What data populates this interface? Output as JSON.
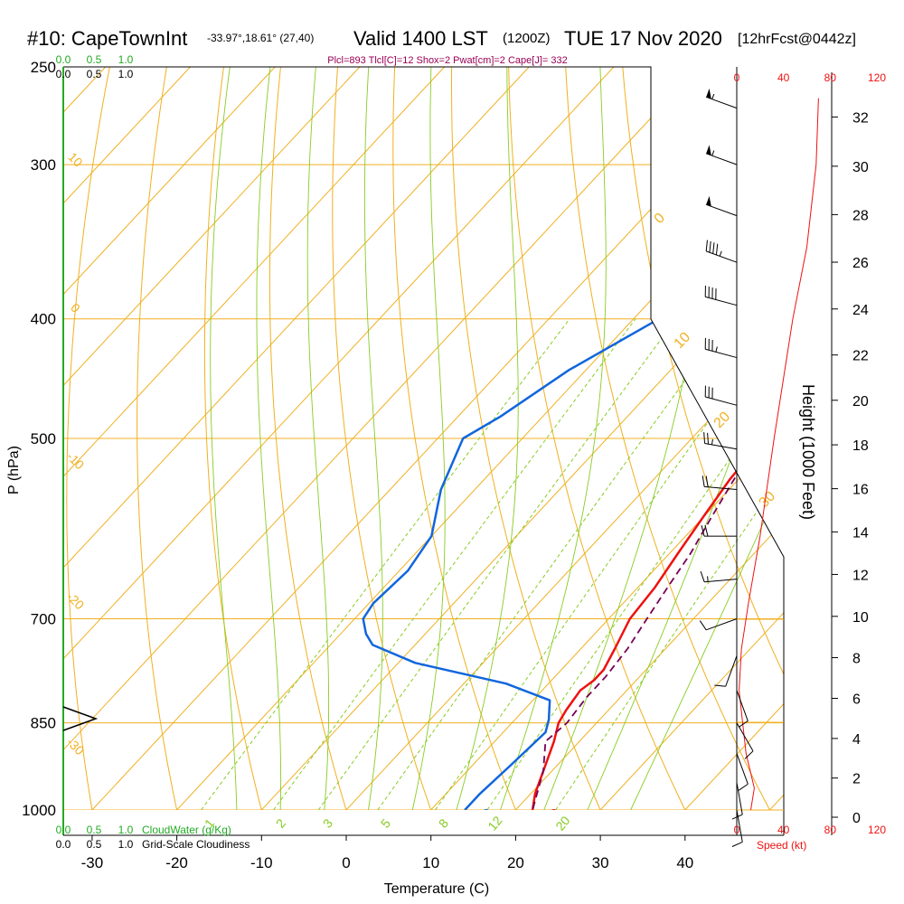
{
  "header": {
    "station": "#10: CapeTownInt",
    "coords": "-33.97°,18.61° (27,40)",
    "valid": "Valid 1400 LST",
    "zulu": "(1200Z)",
    "date": "TUE 17 Nov 2020",
    "forecast": "[12hrFcst@0442z]",
    "indices": "Plcl=893 Tlcl[C]=12 Shox=2 Pwat[cm]=2 Cape[J]= 332"
  },
  "colors": {
    "temperature": "#ee1111",
    "dewpoint": "#1166dd",
    "parcel": "#770055",
    "isotherm": "#f0b020",
    "dry_adiabat": "#f0b020",
    "moist_adiabat": "#88cc22",
    "mixing_ratio": "#88cc22",
    "cloudwater": "#22aa22",
    "wind_speed": "#ee1111",
    "title_indices": "#990055"
  },
  "labels": {
    "cloudwater_scale": [
      "0.0",
      "0.5",
      "1.0"
    ],
    "cloudiness_scale": [
      "0.0",
      "0.5",
      "1.0"
    ],
    "cloudwater_label": "CloudWater (g/Kg)",
    "cloudiness_label": "Grid-Scale Cloudiness",
    "speed_label": "Speed (kt)",
    "height_label": "Height (1000 Feet)"
  },
  "chart_data": {
    "type": "skew-t",
    "xlabel": "Temperature (C)",
    "ylabel": "P (hPa)",
    "x_ticks": [
      "-30",
      "-20",
      "-10",
      "0",
      "10",
      "20",
      "30",
      "40"
    ],
    "y_ticks": [
      "250",
      "300",
      "400",
      "500",
      "700",
      "850",
      "1000"
    ],
    "pressure_ticks": [
      250,
      300,
      400,
      500,
      700,
      850,
      1000
    ],
    "temp_ticks": [
      -30,
      -20,
      -10,
      0,
      10,
      20,
      30,
      40
    ],
    "ylim": [
      1000,
      250
    ],
    "xlim": [
      -35,
      45
    ],
    "mixing_ratio_labels": [
      "1",
      "2",
      "3",
      "5",
      "8",
      "12",
      "20"
    ],
    "isotherm_labels": [
      "10",
      "0",
      "-10",
      "-20",
      "-30"
    ],
    "dry_adiabat_labels": [
      "0",
      "10",
      "20",
      "30"
    ],
    "series": [
      {
        "key": "temperature",
        "points": [
          [
            -2,
            265
          ],
          [
            3,
            300
          ],
          [
            5,
            330
          ],
          [
            6.5,
            360
          ],
          [
            7,
            380
          ],
          [
            6.5,
            400
          ],
          [
            6.5,
            430
          ],
          [
            7,
            460
          ],
          [
            8.5,
            500
          ],
          [
            9,
            540
          ],
          [
            10,
            580
          ],
          [
            11,
            620
          ],
          [
            12,
            660
          ],
          [
            12.5,
            700
          ],
          [
            14,
            740
          ],
          [
            15,
            770
          ],
          [
            15,
            785
          ],
          [
            14.5,
            800
          ],
          [
            15,
            830
          ],
          [
            15.5,
            850
          ],
          [
            17,
            880
          ],
          [
            19,
            930
          ],
          [
            20.5,
            970
          ],
          [
            22,
            1000
          ]
        ]
      },
      {
        "key": "dewpoint",
        "points": [
          [
            -8,
            262
          ],
          [
            -9,
            300
          ],
          [
            -11,
            340
          ],
          [
            -14,
            370
          ],
          [
            -17,
            400
          ],
          [
            -22,
            440
          ],
          [
            -25,
            480
          ],
          [
            -27,
            500
          ],
          [
            -24,
            550
          ],
          [
            -20,
            600
          ],
          [
            -19,
            640
          ],
          [
            -19.5,
            680
          ],
          [
            -19,
            700
          ],
          [
            -17,
            720
          ],
          [
            -15,
            735
          ],
          [
            -8,
            760
          ],
          [
            5,
            790
          ],
          [
            12,
            815
          ],
          [
            13,
            830
          ],
          [
            14,
            845
          ],
          [
            15,
            865
          ],
          [
            14.5,
            920
          ],
          [
            14,
            970
          ],
          [
            14,
            1000
          ]
        ]
      },
      {
        "key": "parcel",
        "points": [
          [
            6,
            470
          ],
          [
            8,
            500
          ],
          [
            9.5,
            540
          ],
          [
            11,
            580
          ],
          [
            12.5,
            620
          ],
          [
            13.5,
            660
          ],
          [
            14.5,
            700
          ],
          [
            15.5,
            740
          ],
          [
            16,
            780
          ],
          [
            16,
            810
          ],
          [
            16.5,
            850
          ],
          [
            16,
            880
          ],
          [
            19,
            930
          ],
          [
            22,
            1000
          ]
        ]
      }
    ],
    "surface_temperature_c": 24.5,
    "surface_dewpoint_c": 16.5,
    "wind_speed_profile": {
      "x_ticks": [
        "0",
        "40",
        "80",
        "120"
      ],
      "speeds_kt": [
        0,
        40,
        80,
        120
      ],
      "points": [
        [
          12,
          1000
        ],
        [
          15,
          960
        ],
        [
          8,
          900
        ],
        [
          5,
          850
        ],
        [
          2,
          800
        ],
        [
          4,
          740
        ],
        [
          10,
          680
        ],
        [
          20,
          600
        ],
        [
          32,
          500
        ],
        [
          48,
          400
        ],
        [
          60,
          350
        ],
        [
          68,
          300
        ],
        [
          70,
          265
        ]
      ]
    },
    "height_axis": {
      "labels": [
        "0",
        "2",
        "4",
        "6",
        "8",
        "10",
        "12",
        "14",
        "16",
        "18",
        "20",
        "22",
        "24",
        "26",
        "28",
        "30",
        "32"
      ],
      "kft": [
        0,
        2,
        4,
        6,
        8,
        10,
        12,
        14,
        16,
        18,
        20,
        22,
        24,
        26,
        28,
        30,
        32
      ]
    },
    "wind_barbs": [
      {
        "p": 270,
        "dir_deg": 290,
        "spd_kt": 55
      },
      {
        "p": 300,
        "dir_deg": 290,
        "spd_kt": 55
      },
      {
        "p": 330,
        "dir_deg": 290,
        "spd_kt": 50
      },
      {
        "p": 360,
        "dir_deg": 290,
        "spd_kt": 45
      },
      {
        "p": 390,
        "dir_deg": 285,
        "spd_kt": 40
      },
      {
        "p": 430,
        "dir_deg": 285,
        "spd_kt": 35
      },
      {
        "p": 470,
        "dir_deg": 285,
        "spd_kt": 30
      },
      {
        "p": 510,
        "dir_deg": 280,
        "spd_kt": 25
      },
      {
        "p": 550,
        "dir_deg": 275,
        "spd_kt": 20
      },
      {
        "p": 600,
        "dir_deg": 270,
        "spd_kt": 20
      },
      {
        "p": 650,
        "dir_deg": 265,
        "spd_kt": 15
      },
      {
        "p": 700,
        "dir_deg": 250,
        "spd_kt": 10
      },
      {
        "p": 750,
        "dir_deg": 200,
        "spd_kt": 10
      },
      {
        "p": 800,
        "dir_deg": 160,
        "spd_kt": 10
      },
      {
        "p": 850,
        "dir_deg": 150,
        "spd_kt": 10
      },
      {
        "p": 900,
        "dir_deg": 160,
        "spd_kt": 10
      },
      {
        "p": 950,
        "dir_deg": 170,
        "spd_kt": 10
      },
      {
        "p": 1000,
        "dir_deg": 170,
        "spd_kt": 10
      }
    ]
  }
}
